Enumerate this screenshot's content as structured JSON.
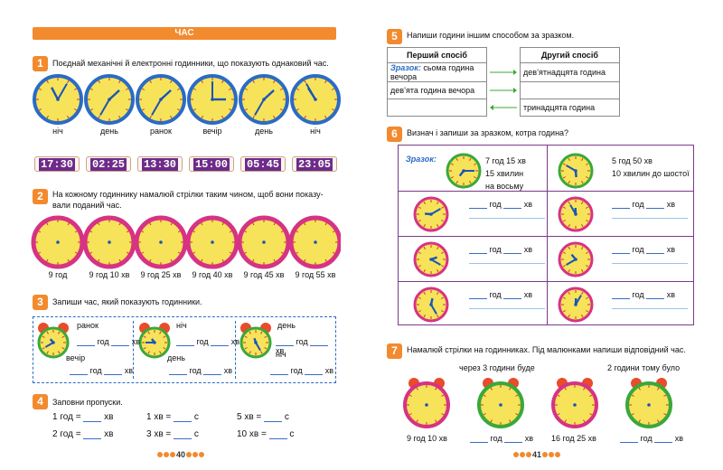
{
  "left": {
    "banner": "ЧАС",
    "t1": {
      "num": "1",
      "text": "Поєднай механічні й електронні годинники, що показують однаковий час.",
      "labels": [
        "ніч",
        "день",
        "ранок",
        "вечір",
        "день",
        "ніч"
      ],
      "digital": [
        "17:30",
        "02:25",
        "13:30",
        "15:00",
        "05:45",
        "23:05"
      ]
    },
    "t2": {
      "num": "2",
      "text1": "На кожному годиннику намалюй стрілки таким чином, щоб вони показу-",
      "text2": "вали поданий час.",
      "labels": [
        "9 год",
        "9 год 10 хв",
        "9 год 25 хв",
        "9 год 40 хв",
        "9 год 45 хв",
        "9 год 55 хв"
      ]
    },
    "t3": {
      "num": "3",
      "text": "Запиши час, який показують годинники.",
      "p1": [
        "ранок",
        "вечір"
      ],
      "p2": [
        "ніч",
        "день"
      ],
      "p3": [
        "день",
        "ніч"
      ],
      "g": "год",
      "h": "хв"
    },
    "t4": {
      "num": "4",
      "text": "Заповни пропуски.",
      "c1": [
        "1 год =",
        "хв",
        "2 год =",
        "хв"
      ],
      "c2": [
        "1 хв =",
        "с",
        "3 хв =",
        "с"
      ],
      "c3": [
        "5 хв =",
        "с",
        "10 хв =",
        "с"
      ]
    },
    "page": "40"
  },
  "right": {
    "t5": {
      "num": "5",
      "text": "Напиши години іншим способом за зразком.",
      "h1": "Перший спосіб",
      "h2": "Другий спосіб",
      "r1a": "Зразок:",
      "r1b": "сьома година вечора",
      "r1c": "дев’ятнадцята година",
      "r2a": "дев’ята година вечора",
      "r4c": "тринадцята година"
    },
    "t6": {
      "num": "6",
      "text": "Визнач і запиши за зразком, котра година?",
      "sample": "Зразок:",
      "s1a": "7 год 15 хв",
      "s1b": "15 хвилин",
      "s1c": "на восьму",
      "s2a": "5 год 50 хв",
      "s2b": "10 хвилин до шостої",
      "g": "год",
      "h": "хв"
    },
    "t7": {
      "num": "7",
      "text": "Намалюй стрілки на годинниках. Під малюнками напиши відповідний час.",
      "top2": "через 3 години буде",
      "top4": "2 години тому було",
      "b1": "9 год 10 хв",
      "b3": "16 год 25 хв",
      "g": "год",
      "h": "хв"
    },
    "page": "41"
  },
  "colors": {
    "accent": "#f28a2e",
    "clockFace": "#f7e35a",
    "rim": "#2b6bc4",
    "pink": "#d63384",
    "purple": "#7a3a8a"
  }
}
